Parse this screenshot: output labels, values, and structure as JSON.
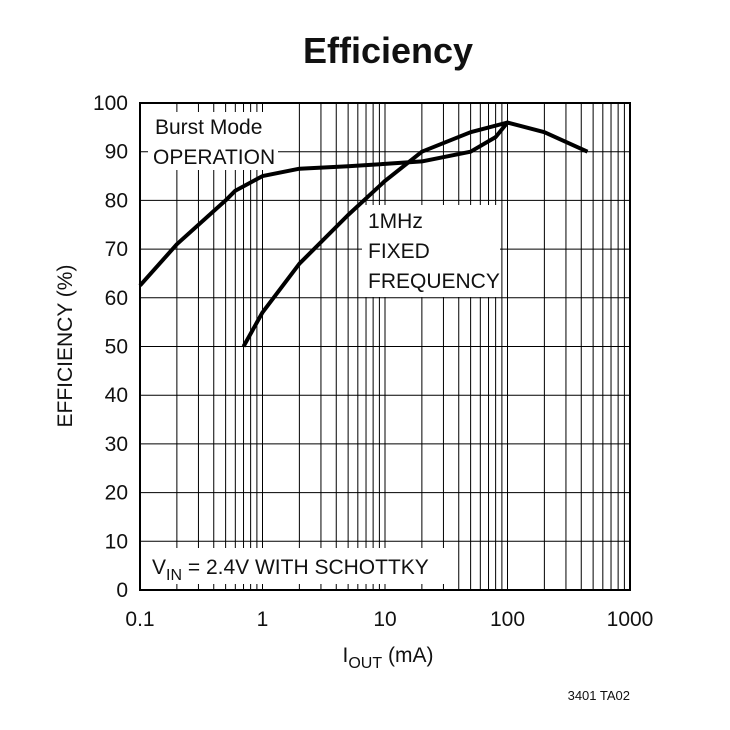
{
  "chart_data": {
    "type": "line",
    "title": "Efficiency",
    "ylabel": "EFFICIENCY (%)",
    "xlabel_parts": [
      "I",
      "OUT",
      " (mA)"
    ],
    "xlog": true,
    "grid": true,
    "color": "#000000",
    "xlim": [
      0.1,
      1000
    ],
    "ylim": [
      0,
      100
    ],
    "xticks": [
      0.1,
      1,
      10,
      100,
      1000
    ],
    "xminor": [
      0.2,
      0.3,
      0.4,
      0.5,
      0.6,
      0.7,
      0.8,
      0.9,
      2,
      3,
      4,
      5,
      6,
      7,
      8,
      9,
      20,
      30,
      40,
      50,
      60,
      70,
      80,
      90,
      200,
      300,
      400,
      500,
      600,
      700,
      800,
      900
    ],
    "yticks": [
      0,
      10,
      20,
      30,
      40,
      50,
      60,
      70,
      80,
      90,
      100
    ],
    "series": [
      {
        "color": "#000000",
        "x": [
          0.1,
          0.2,
          0.5,
          0.6,
          1,
          2,
          5,
          10,
          20,
          50,
          80,
          100,
          200,
          450
        ],
        "values": [
          62.5,
          71,
          80,
          82,
          85,
          86.5,
          87,
          87.5,
          88,
          90,
          93,
          96,
          94,
          90
        ]
      },
      {
        "color": "#000000",
        "x": [
          0.7,
          1,
          2,
          5,
          10,
          20,
          50,
          100
        ],
        "values": [
          50,
          57,
          67,
          77,
          84,
          90,
          94,
          96
        ]
      }
    ],
    "annotations": [
      {
        "lines": [
          "Burst Mode",
          "OPERATION"
        ]
      },
      {
        "lines": [
          "1MHz",
          "FIXED",
          "FREQUENCY"
        ]
      },
      {
        "parts": [
          "V",
          "IN",
          " = 2.4V WITH SCHOTTKY"
        ]
      }
    ],
    "footnote": "3401 TA02"
  }
}
